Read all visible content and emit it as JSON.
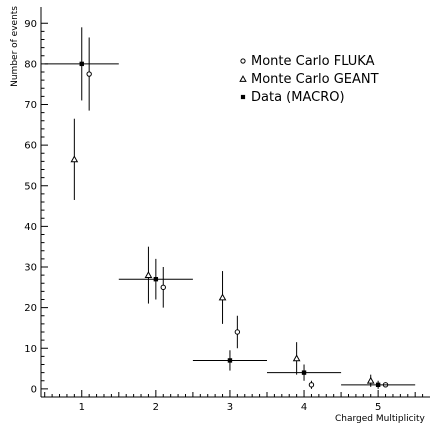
{
  "chart_data": {
    "type": "scatter",
    "title": "",
    "xlabel": "Charged Multiplicity",
    "ylabel": "Number of events",
    "xlim": [
      0.45,
      5.7
    ],
    "ylim": [
      -2,
      94
    ],
    "x_ticks": [
      1,
      2,
      3,
      4,
      5
    ],
    "y_ticks": [
      0,
      10,
      20,
      30,
      40,
      50,
      60,
      70,
      80,
      90
    ],
    "legend_position": "top-right",
    "series": [
      {
        "name": "Monte Carlo FLUKA",
        "marker": "open-circle",
        "points": [
          {
            "x": 1.1,
            "y": 77.5,
            "yerr": 9
          },
          {
            "x": 2.1,
            "y": 25,
            "yerr": 5
          },
          {
            "x": 3.1,
            "y": 14,
            "yerr": 4
          },
          {
            "x": 4.1,
            "y": 1,
            "yerr": 1
          },
          {
            "x": 5.1,
            "y": 1,
            "yerr": 0.5
          }
        ]
      },
      {
        "name": "Monte Carlo GEANT",
        "marker": "open-triangle",
        "points": [
          {
            "x": 0.9,
            "y": 56.5,
            "yerr": 10
          },
          {
            "x": 1.9,
            "y": 28,
            "yerr": 7
          },
          {
            "x": 2.9,
            "y": 22.5,
            "yerr": 6.5
          },
          {
            "x": 3.9,
            "y": 7.5,
            "yerr": 4
          },
          {
            "x": 4.9,
            "y": 2,
            "yerr": 1.5
          }
        ]
      },
      {
        "name": "Data (MACRO)",
        "marker": "filled-square",
        "points": [
          {
            "x": 1,
            "y": 80,
            "yerr": 9,
            "xerr": 0.5
          },
          {
            "x": 2,
            "y": 27,
            "yerr": 5,
            "xerr": 0.5
          },
          {
            "x": 3,
            "y": 7,
            "yerr": 2.5,
            "xerr": 0.5
          },
          {
            "x": 4,
            "y": 4,
            "yerr": 2,
            "xerr": 0.5
          },
          {
            "x": 5,
            "y": 1,
            "yerr": 1,
            "xerr": 0.5
          }
        ]
      }
    ]
  }
}
